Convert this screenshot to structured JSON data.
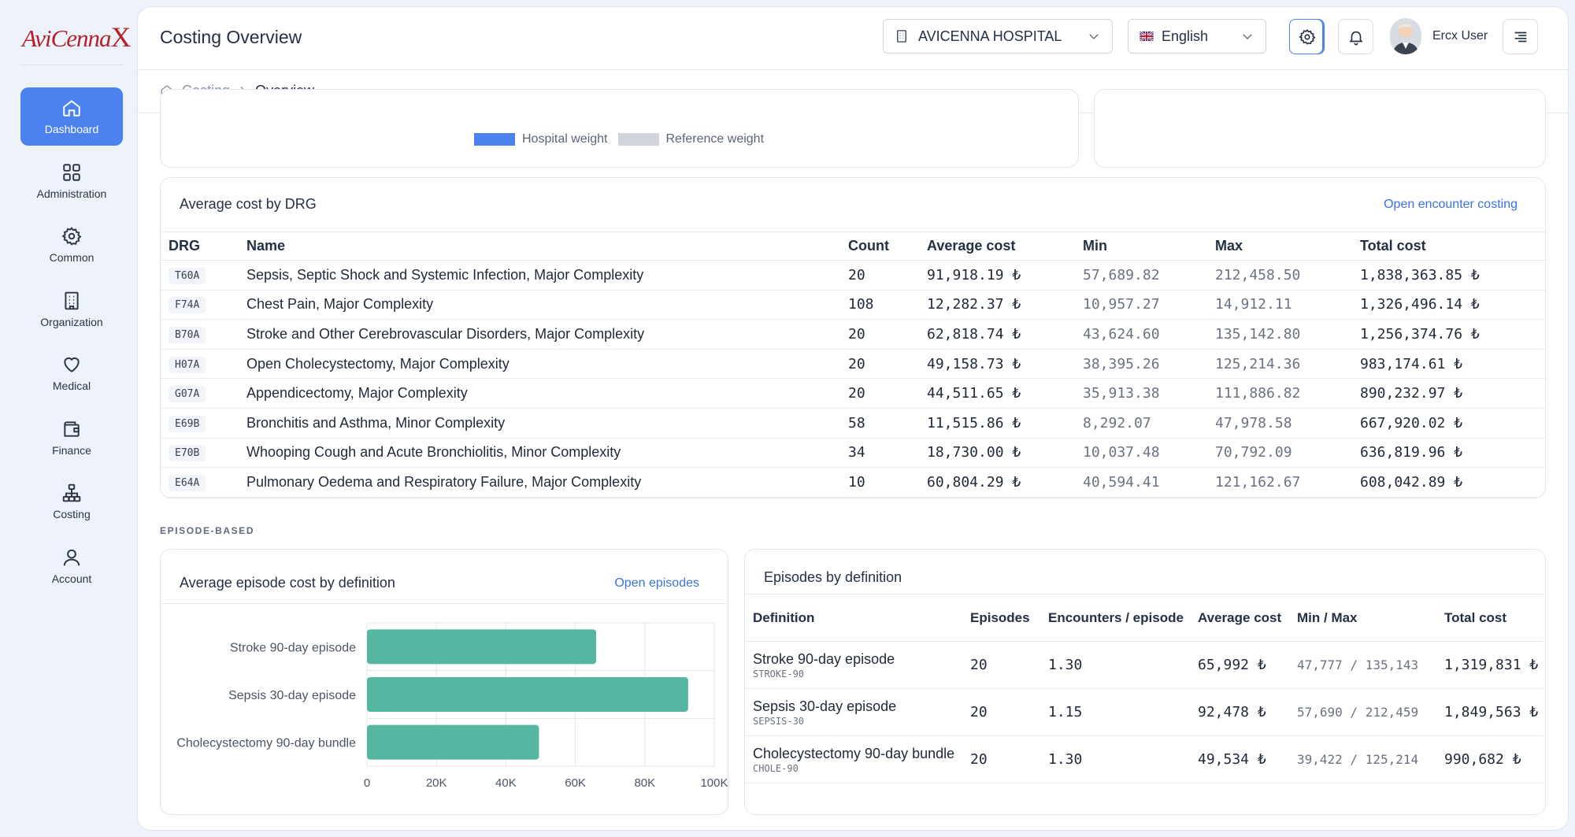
{
  "brand": {
    "logo_text": "AviCenna",
    "logo_mark": "X"
  },
  "sidebar": {
    "items": [
      {
        "label": "Dashboard",
        "icon": "home-icon",
        "active": true
      },
      {
        "label": "Administration",
        "icon": "grid-icon"
      },
      {
        "label": "Common",
        "icon": "gear-icon"
      },
      {
        "label": "Organization",
        "icon": "building-icon"
      },
      {
        "label": "Medical",
        "icon": "heart-icon"
      },
      {
        "label": "Finance",
        "icon": "wallet-icon"
      },
      {
        "label": "Costing",
        "icon": "hierarchy-icon"
      },
      {
        "label": "Account",
        "icon": "user-icon"
      }
    ]
  },
  "header": {
    "title": "Costing Overview",
    "hospital_select": "AVICENNA HOSPITAL",
    "language_select": "English",
    "user_name": "Ercx User"
  },
  "breadcrumb": {
    "parent": "Costing",
    "current": "Overview"
  },
  "weights_legend": {
    "hospital": "Hospital weight",
    "reference": "Reference weight"
  },
  "drg_card": {
    "title": "Average cost by DRG",
    "link": "Open encounter costing",
    "columns": [
      "DRG",
      "Name",
      "Count",
      "Average cost",
      "Min",
      "Max",
      "Total cost"
    ],
    "rows": [
      [
        "T60A",
        "Sepsis, Septic Shock and Systemic Infection, Major Complexity",
        "20",
        "91,918.19 ₺",
        "57,689.82",
        "212,458.50",
        "1,838,363.85 ₺"
      ],
      [
        "F74A",
        "Chest Pain, Major Complexity",
        "108",
        "12,282.37 ₺",
        "10,957.27",
        "14,912.11",
        "1,326,496.14 ₺"
      ],
      [
        "B70A",
        "Stroke and Other Cerebrovascular Disorders, Major Complexity",
        "20",
        "62,818.74 ₺",
        "43,624.60",
        "135,142.80",
        "1,256,374.76 ₺"
      ],
      [
        "H07A",
        "Open Cholecystectomy, Major Complexity",
        "20",
        "49,158.73 ₺",
        "38,395.26",
        "125,214.36",
        "983,174.61 ₺"
      ],
      [
        "G07A",
        "Appendicectomy, Major Complexity",
        "20",
        "44,511.65 ₺",
        "35,913.38",
        "111,886.82",
        "890,232.97 ₺"
      ],
      [
        "E69B",
        "Bronchitis and Asthma, Minor Complexity",
        "58",
        "11,515.86 ₺",
        "8,292.07",
        "47,978.58",
        "667,920.02 ₺"
      ],
      [
        "E70B",
        "Whooping Cough and Acute Bronchiolitis, Minor Complexity",
        "34",
        "18,730.00 ₺",
        "10,037.48",
        "70,792.09",
        "636,819.96 ₺"
      ],
      [
        "E64A",
        "Pulmonary Oedema and Respiratory Failure, Major Complexity",
        "10",
        "60,804.29 ₺",
        "40,594.41",
        "121,162.67",
        "608,042.89 ₺"
      ]
    ]
  },
  "section_label": "EPISODE-BASED",
  "episode_chart_card": {
    "title": "Average episode cost by definition",
    "link": "Open episodes"
  },
  "chart_data": {
    "type": "bar",
    "orientation": "horizontal",
    "categories": [
      "Stroke 90-day episode",
      "Sepsis 30-day episode",
      "Cholecystectomy 90-day bundle"
    ],
    "values": [
      65992,
      92478,
      49534
    ],
    "xlim": [
      0,
      100000
    ],
    "x_ticks": [
      "0",
      "20K",
      "40K",
      "60K",
      "80K",
      "100K"
    ],
    "grid": true,
    "color": "#55b6a2"
  },
  "episodes_card": {
    "title": "Episodes by definition",
    "columns": [
      "Definition",
      "Episodes",
      "Encounters / episode",
      "Average cost",
      "Min / Max",
      "Total cost"
    ],
    "rows": [
      {
        "name": "Stroke 90-day episode",
        "code": "STROKE-90",
        "episodes": "20",
        "enc": "1.30",
        "avg": "65,992 ₺",
        "minmax": "47,777 / 135,143",
        "total": "1,319,831 ₺"
      },
      {
        "name": "Sepsis 30-day episode",
        "code": "SEPSIS-30",
        "episodes": "20",
        "enc": "1.15",
        "avg": "92,478 ₺",
        "minmax": "57,690 / 212,459",
        "total": "1,849,563 ₺"
      },
      {
        "name": "Cholecystectomy 90-day bundle",
        "code": "CHOLE-90",
        "episodes": "20",
        "enc": "1.30",
        "avg": "49,534 ₺",
        "minmax": "39,422 / 125,214",
        "total": "990,682 ₺"
      }
    ]
  },
  "colors": {
    "accent": "#4b82ed",
    "link": "#3b74d8",
    "bar": "#55b6a2",
    "hospital_weight": "#4b82ed",
    "reference_weight": "#d1d5db"
  }
}
